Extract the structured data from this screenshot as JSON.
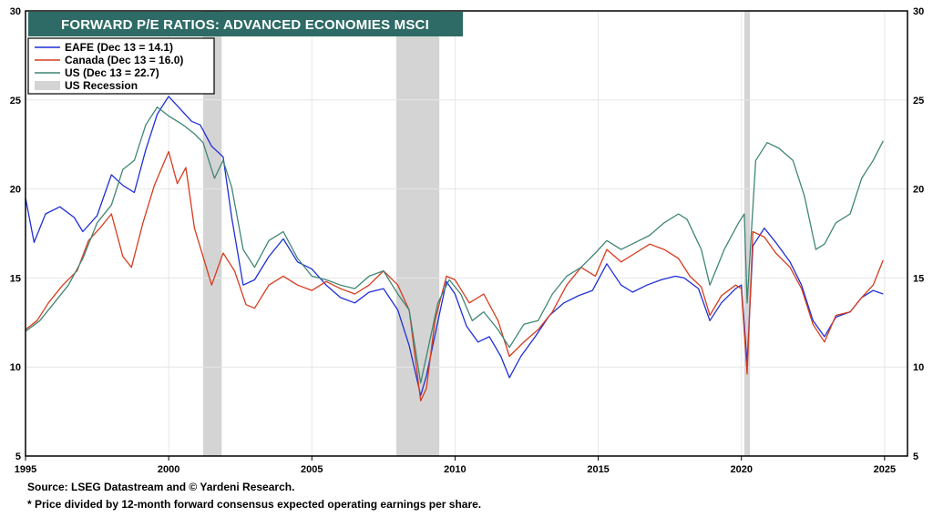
{
  "chart_data": {
    "type": "line",
    "title": "FORWARD P/E RATIOS: ADVANCED ECONOMIES MSCI",
    "xlabel": "",
    "ylabel": "",
    "xlim": [
      1995,
      2025.8
    ],
    "ylim": [
      5,
      30
    ],
    "x_ticks": [
      1995,
      2000,
      2005,
      2010,
      2015,
      2020,
      2025
    ],
    "y_ticks": [
      5,
      10,
      15,
      20,
      25,
      30
    ],
    "grid": true,
    "legend_position": "top-left",
    "recessions": [
      {
        "start": 2001.2,
        "end": 2001.85
      },
      {
        "start": 2007.95,
        "end": 2009.45
      },
      {
        "start": 2020.1,
        "end": 2020.3
      }
    ],
    "recession_label": "US Recession",
    "series": [
      {
        "name": "EAFE (Dec 13 = 14.1)",
        "color": "#1f2fd6",
        "points": [
          [
            1995.0,
            19.5
          ],
          [
            1995.3,
            17.0
          ],
          [
            1995.7,
            18.6
          ],
          [
            1996.2,
            19.0
          ],
          [
            1996.7,
            18.4
          ],
          [
            1997.0,
            17.6
          ],
          [
            1997.5,
            18.5
          ],
          [
            1998.0,
            20.8
          ],
          [
            1998.4,
            20.2
          ],
          [
            1998.8,
            19.8
          ],
          [
            1999.2,
            22.2
          ],
          [
            1999.6,
            24.2
          ],
          [
            2000.0,
            25.2
          ],
          [
            2000.4,
            24.5
          ],
          [
            2000.8,
            23.8
          ],
          [
            2001.1,
            23.6
          ],
          [
            2001.5,
            22.4
          ],
          [
            2001.9,
            21.8
          ],
          [
            2002.2,
            18.4
          ],
          [
            2002.6,
            14.6
          ],
          [
            2003.0,
            14.9
          ],
          [
            2003.5,
            16.2
          ],
          [
            2004.0,
            17.2
          ],
          [
            2004.5,
            15.9
          ],
          [
            2005.0,
            15.5
          ],
          [
            2005.5,
            14.6
          ],
          [
            2006.0,
            13.9
          ],
          [
            2006.5,
            13.6
          ],
          [
            2007.0,
            14.2
          ],
          [
            2007.5,
            14.4
          ],
          [
            2008.0,
            13.2
          ],
          [
            2008.4,
            11.2
          ],
          [
            2008.8,
            8.4
          ],
          [
            2009.0,
            9.5
          ],
          [
            2009.3,
            11.8
          ],
          [
            2009.7,
            14.8
          ],
          [
            2010.0,
            14.1
          ],
          [
            2010.4,
            12.3
          ],
          [
            2010.8,
            11.4
          ],
          [
            2011.2,
            11.7
          ],
          [
            2011.6,
            10.6
          ],
          [
            2011.9,
            9.4
          ],
          [
            2012.3,
            10.6
          ],
          [
            2012.8,
            11.7
          ],
          [
            2013.3,
            12.9
          ],
          [
            2013.8,
            13.6
          ],
          [
            2014.3,
            14.0
          ],
          [
            2014.8,
            14.3
          ],
          [
            2015.3,
            15.8
          ],
          [
            2015.8,
            14.6
          ],
          [
            2016.2,
            14.2
          ],
          [
            2016.7,
            14.6
          ],
          [
            2017.2,
            14.9
          ],
          [
            2017.7,
            15.1
          ],
          [
            2018.0,
            15.0
          ],
          [
            2018.5,
            14.4
          ],
          [
            2018.9,
            12.6
          ],
          [
            2019.3,
            13.6
          ],
          [
            2019.8,
            14.4
          ],
          [
            2020.0,
            14.6
          ],
          [
            2020.2,
            10.2
          ],
          [
            2020.4,
            16.8
          ],
          [
            2020.8,
            17.8
          ],
          [
            2021.2,
            17.0
          ],
          [
            2021.7,
            15.9
          ],
          [
            2022.1,
            14.6
          ],
          [
            2022.5,
            12.6
          ],
          [
            2022.9,
            11.7
          ],
          [
            2023.3,
            12.8
          ],
          [
            2023.8,
            13.1
          ],
          [
            2024.2,
            13.9
          ],
          [
            2024.6,
            14.3
          ],
          [
            2024.95,
            14.1
          ]
        ]
      },
      {
        "name": "Canada (Dec 13 = 16.0)",
        "color": "#d63c1e",
        "points": [
          [
            1995.0,
            12.1
          ],
          [
            1995.4,
            12.6
          ],
          [
            1995.8,
            13.6
          ],
          [
            1996.3,
            14.6
          ],
          [
            1996.8,
            15.4
          ],
          [
            1997.2,
            17.1
          ],
          [
            1997.6,
            17.8
          ],
          [
            1998.0,
            18.6
          ],
          [
            1998.4,
            16.2
          ],
          [
            1998.7,
            15.6
          ],
          [
            1999.1,
            18.1
          ],
          [
            1999.5,
            20.2
          ],
          [
            2000.0,
            22.1
          ],
          [
            2000.3,
            20.3
          ],
          [
            2000.6,
            21.2
          ],
          [
            2000.9,
            17.8
          ],
          [
            2001.2,
            16.2
          ],
          [
            2001.5,
            14.6
          ],
          [
            2001.9,
            16.4
          ],
          [
            2002.3,
            15.4
          ],
          [
            2002.7,
            13.5
          ],
          [
            2003.0,
            13.3
          ],
          [
            2003.5,
            14.6
          ],
          [
            2004.0,
            15.1
          ],
          [
            2004.5,
            14.6
          ],
          [
            2005.0,
            14.3
          ],
          [
            2005.5,
            14.8
          ],
          [
            2006.0,
            14.4
          ],
          [
            2006.5,
            14.1
          ],
          [
            2007.0,
            14.6
          ],
          [
            2007.5,
            15.4
          ],
          [
            2008.0,
            14.6
          ],
          [
            2008.4,
            13.2
          ],
          [
            2008.8,
            8.1
          ],
          [
            2009.0,
            8.8
          ],
          [
            2009.3,
            12.6
          ],
          [
            2009.7,
            15.1
          ],
          [
            2010.0,
            14.9
          ],
          [
            2010.5,
            13.6
          ],
          [
            2011.0,
            14.1
          ],
          [
            2011.5,
            12.6
          ],
          [
            2011.9,
            10.6
          ],
          [
            2012.4,
            11.4
          ],
          [
            2012.9,
            12.1
          ],
          [
            2013.4,
            13.1
          ],
          [
            2013.9,
            14.6
          ],
          [
            2014.4,
            15.6
          ],
          [
            2014.9,
            15.1
          ],
          [
            2015.3,
            16.6
          ],
          [
            2015.8,
            15.9
          ],
          [
            2016.3,
            16.4
          ],
          [
            2016.8,
            16.9
          ],
          [
            2017.3,
            16.6
          ],
          [
            2017.8,
            16.1
          ],
          [
            2018.2,
            15.1
          ],
          [
            2018.6,
            14.5
          ],
          [
            2018.9,
            12.9
          ],
          [
            2019.3,
            14.0
          ],
          [
            2019.8,
            14.6
          ],
          [
            2020.0,
            14.4
          ],
          [
            2020.2,
            9.6
          ],
          [
            2020.4,
            17.6
          ],
          [
            2020.8,
            17.3
          ],
          [
            2021.2,
            16.4
          ],
          [
            2021.7,
            15.6
          ],
          [
            2022.1,
            14.4
          ],
          [
            2022.5,
            12.4
          ],
          [
            2022.9,
            11.4
          ],
          [
            2023.3,
            12.9
          ],
          [
            2023.8,
            13.1
          ],
          [
            2024.2,
            13.9
          ],
          [
            2024.6,
            14.6
          ],
          [
            2024.95,
            16.0
          ]
        ]
      },
      {
        "name": "US (Dec 13 = 22.7)",
        "color": "#3f8676",
        "points": [
          [
            1995.0,
            12.0
          ],
          [
            1995.5,
            12.6
          ],
          [
            1996.0,
            13.6
          ],
          [
            1996.5,
            14.6
          ],
          [
            1997.0,
            16.1
          ],
          [
            1997.5,
            18.1
          ],
          [
            1998.0,
            19.1
          ],
          [
            1998.4,
            21.1
          ],
          [
            1998.8,
            21.6
          ],
          [
            1999.2,
            23.6
          ],
          [
            1999.6,
            24.6
          ],
          [
            2000.0,
            24.1
          ],
          [
            2000.5,
            23.6
          ],
          [
            2000.9,
            23.1
          ],
          [
            2001.2,
            22.6
          ],
          [
            2001.6,
            20.6
          ],
          [
            2001.9,
            21.6
          ],
          [
            2002.2,
            20.1
          ],
          [
            2002.6,
            16.6
          ],
          [
            2003.0,
            15.6
          ],
          [
            2003.5,
            17.1
          ],
          [
            2004.0,
            17.6
          ],
          [
            2004.5,
            16.1
          ],
          [
            2005.0,
            15.1
          ],
          [
            2005.5,
            14.9
          ],
          [
            2006.0,
            14.6
          ],
          [
            2006.5,
            14.4
          ],
          [
            2007.0,
            15.1
          ],
          [
            2007.5,
            15.4
          ],
          [
            2008.0,
            14.1
          ],
          [
            2008.4,
            13.2
          ],
          [
            2008.8,
            9.1
          ],
          [
            2009.0,
            10.6
          ],
          [
            2009.4,
            13.6
          ],
          [
            2009.8,
            14.9
          ],
          [
            2010.2,
            14.1
          ],
          [
            2010.6,
            12.6
          ],
          [
            2011.0,
            13.1
          ],
          [
            2011.5,
            12.1
          ],
          [
            2011.9,
            11.1
          ],
          [
            2012.4,
            12.4
          ],
          [
            2012.9,
            12.6
          ],
          [
            2013.4,
            14.1
          ],
          [
            2013.9,
            15.1
          ],
          [
            2014.4,
            15.6
          ],
          [
            2014.9,
            16.4
          ],
          [
            2015.3,
            17.1
          ],
          [
            2015.8,
            16.6
          ],
          [
            2016.3,
            17.0
          ],
          [
            2016.8,
            17.4
          ],
          [
            2017.3,
            18.1
          ],
          [
            2017.8,
            18.6
          ],
          [
            2018.1,
            18.3
          ],
          [
            2018.6,
            16.6
          ],
          [
            2018.9,
            14.6
          ],
          [
            2019.4,
            16.6
          ],
          [
            2019.9,
            18.1
          ],
          [
            2020.1,
            18.6
          ],
          [
            2020.2,
            13.6
          ],
          [
            2020.5,
            21.6
          ],
          [
            2020.9,
            22.6
          ],
          [
            2021.3,
            22.3
          ],
          [
            2021.8,
            21.6
          ],
          [
            2022.2,
            19.6
          ],
          [
            2022.6,
            16.6
          ],
          [
            2022.9,
            16.9
          ],
          [
            2023.3,
            18.1
          ],
          [
            2023.8,
            18.6
          ],
          [
            2024.2,
            20.6
          ],
          [
            2024.6,
            21.6
          ],
          [
            2024.95,
            22.7
          ]
        ]
      }
    ]
  },
  "footnotes": {
    "source": "Source: LSEG Datastream and © Yardeni Research.",
    "note": "* Price divided by 12-month forward consensus expected operating earnings per share."
  }
}
